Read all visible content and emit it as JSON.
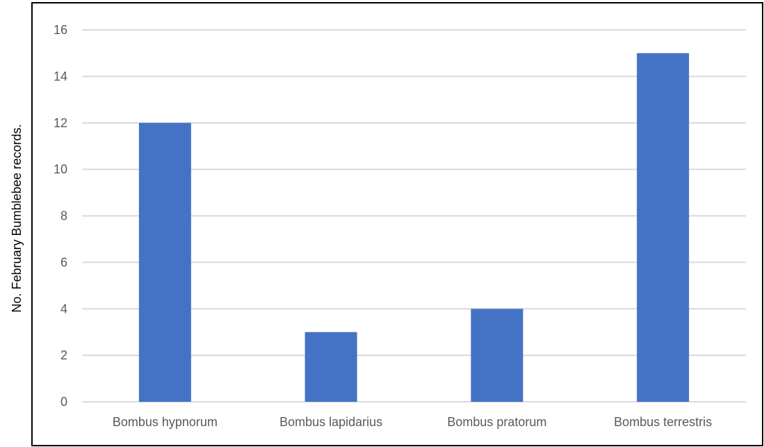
{
  "chart_data": {
    "type": "bar",
    "title": "",
    "xlabel": "",
    "ylabel": "No. February Bumblebee records.",
    "categories": [
      "Bombus hypnorum",
      "Bombus lapidarius",
      "Bombus pratorum",
      "Bombus terrestris"
    ],
    "series": [
      {
        "values": [
          12,
          3,
          4,
          15
        ]
      }
    ],
    "ylim": [
      0,
      16
    ],
    "yticks": [
      0,
      2,
      4,
      6,
      8,
      10,
      12,
      14,
      16
    ],
    "grid": true,
    "legend": "none",
    "colors": {
      "bar": "#4472c4",
      "grid": "#d9d9d9",
      "tick_text": "#595959",
      "frame": "#000000"
    }
  }
}
